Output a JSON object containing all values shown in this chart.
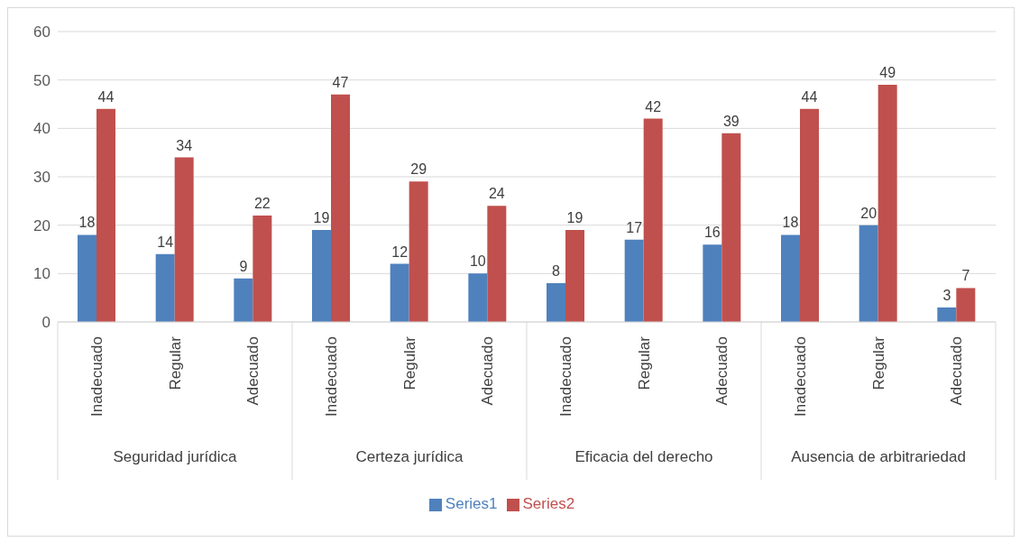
{
  "chart_data": {
    "type": "bar",
    "categories": [
      "Inadecuado",
      "Regular",
      "Adecuado",
      "Inadecuado",
      "Regular",
      "Adecuado",
      "Inadecuado",
      "Regular",
      "Adecuado",
      "Inadecuado",
      "Regular",
      "Adecuado"
    ],
    "annotations": [
      "Seguridad jurídica",
      "Certeza jurídica",
      "Eficacia del derecho",
      "Ausencia de arbitrariedad"
    ],
    "series": [
      {
        "name": "Series1",
        "color": "#4f81bd",
        "values": [
          18,
          14,
          9,
          19,
          12,
          10,
          8,
          17,
          16,
          18,
          20,
          3
        ]
      },
      {
        "name": "Series2",
        "color": "#c0504d",
        "values": [
          44,
          34,
          22,
          47,
          29,
          24,
          19,
          42,
          39,
          44,
          49,
          7
        ]
      }
    ],
    "ylim": [
      0,
      60
    ],
    "yticks": [
      0,
      10,
      20,
      30,
      40,
      50,
      60
    ],
    "grid": "y",
    "legend": "bottom",
    "data_labels": true
  }
}
